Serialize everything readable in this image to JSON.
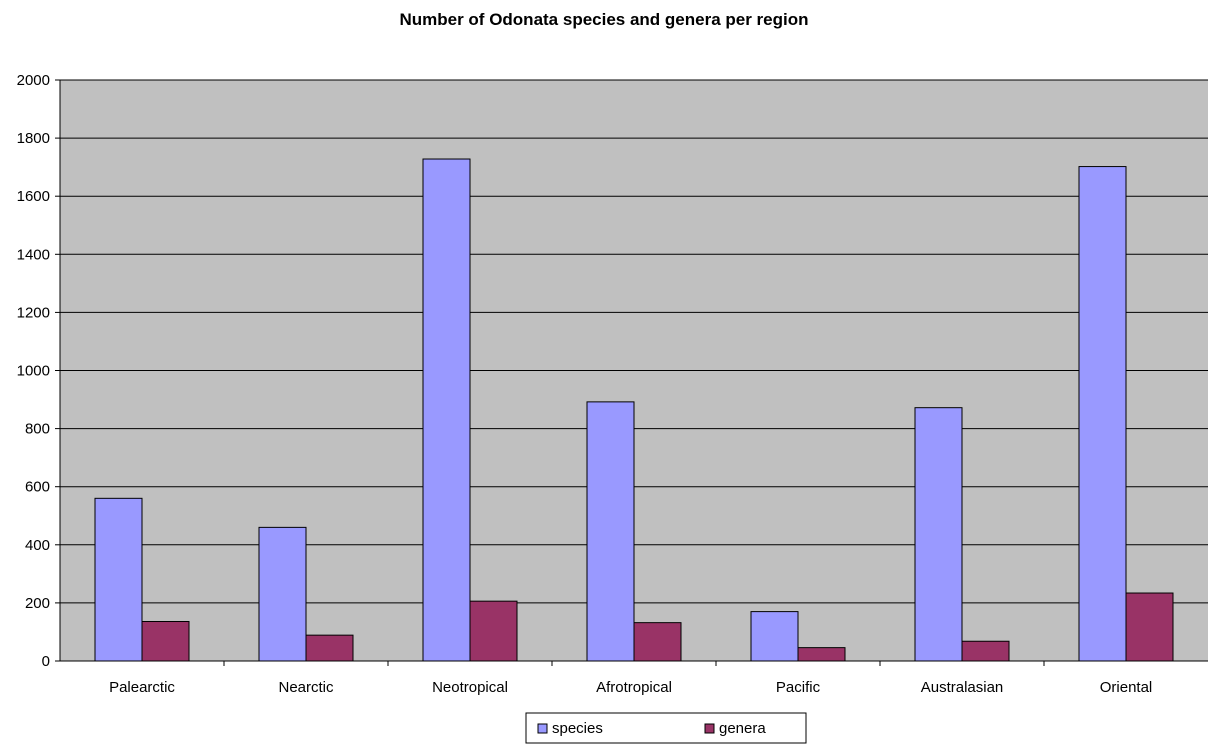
{
  "chart_data": {
    "type": "bar",
    "title": "Number of Odonata species and genera per region",
    "xlabel": "",
    "ylabel": "",
    "categories": [
      "Palearctic",
      "Nearctic",
      "Neotropical",
      "Afrotropical",
      "Pacific",
      "Australasian",
      "Oriental"
    ],
    "series": [
      {
        "name": "species",
        "values": [
          560,
          460,
          1728,
          892,
          170,
          872,
          1702
        ]
      },
      {
        "name": "genera",
        "values": [
          136,
          89,
          206,
          132,
          46,
          68,
          234
        ]
      }
    ],
    "ylim": [
      0,
      2000
    ],
    "yticks": [
      "0",
      "200",
      "400",
      "600",
      "800",
      "1000",
      "1200",
      "1400",
      "1600",
      "1800",
      "2000"
    ],
    "grid": true,
    "legend_position": "bottom",
    "colors": {
      "plot_background": "#c0c0c0",
      "series": [
        "#9999ff",
        "#993366"
      ],
      "gridline": "#000000"
    }
  }
}
